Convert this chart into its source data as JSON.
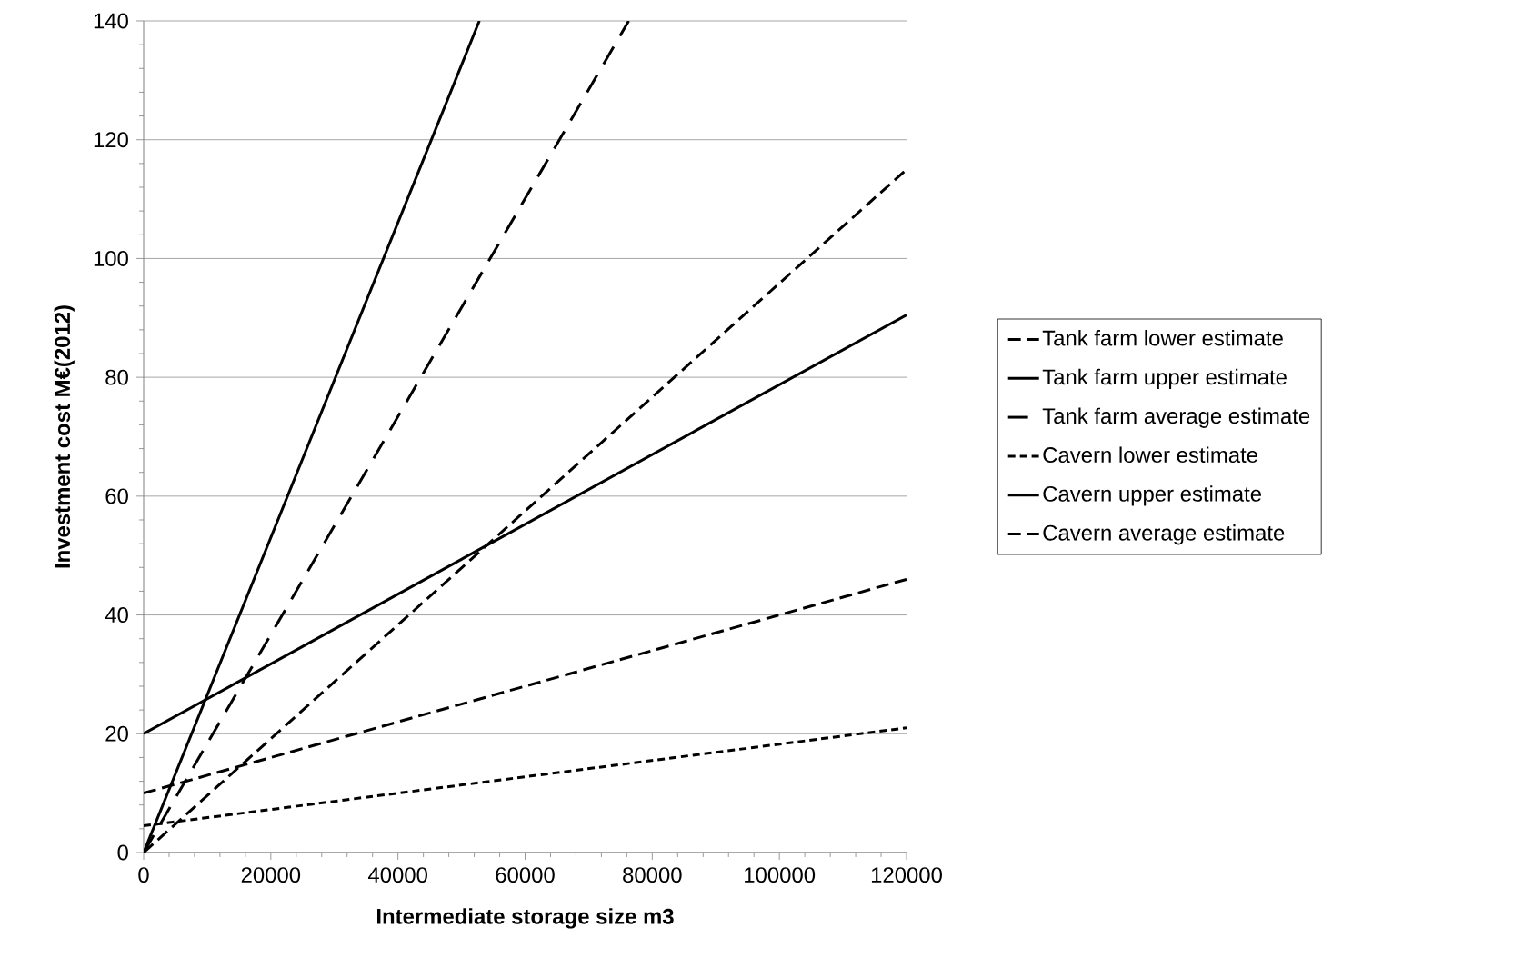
{
  "chart_data": {
    "type": "line",
    "xlabel": "Intermediate storage size m3",
    "ylabel": "Investment cost M€(2012)",
    "xlim": [
      0,
      120000
    ],
    "ylim": [
      0,
      140
    ],
    "xticks": [
      0,
      20000,
      40000,
      60000,
      80000,
      100000,
      120000
    ],
    "yticks": [
      0,
      20,
      40,
      60,
      80,
      100,
      120,
      140
    ],
    "grid": "y",
    "legend": "right",
    "marker": "none",
    "series": [
      {
        "name": "Tank farm lower estimate",
        "color": "#000000",
        "line_style": "dashed",
        "x": [
          0,
          120000
        ],
        "values": [
          0,
          115
        ]
      },
      {
        "name": "Tank farm upper estimate",
        "color": "#000000",
        "line_style": "solid",
        "x": [
          0,
          52800
        ],
        "values": [
          0,
          140
        ]
      },
      {
        "name": "Tank farm average estimate",
        "color": "#000000",
        "line_style": "longdashed",
        "x": [
          0,
          76300
        ],
        "values": [
          0,
          140
        ]
      },
      {
        "name": "Cavern lower estimate",
        "color": "#000000",
        "line_style": "dotted",
        "x": [
          0,
          120000
        ],
        "values": [
          4.5,
          21
        ]
      },
      {
        "name": "Cavern upper estimate",
        "color": "#000000",
        "line_style": "solid",
        "x": [
          0,
          120000
        ],
        "values": [
          20,
          90.5
        ]
      },
      {
        "name": "Cavern average estimate",
        "color": "#000000",
        "line_style": "dashed",
        "x": [
          0,
          120000
        ],
        "values": [
          10,
          46
        ]
      }
    ]
  }
}
